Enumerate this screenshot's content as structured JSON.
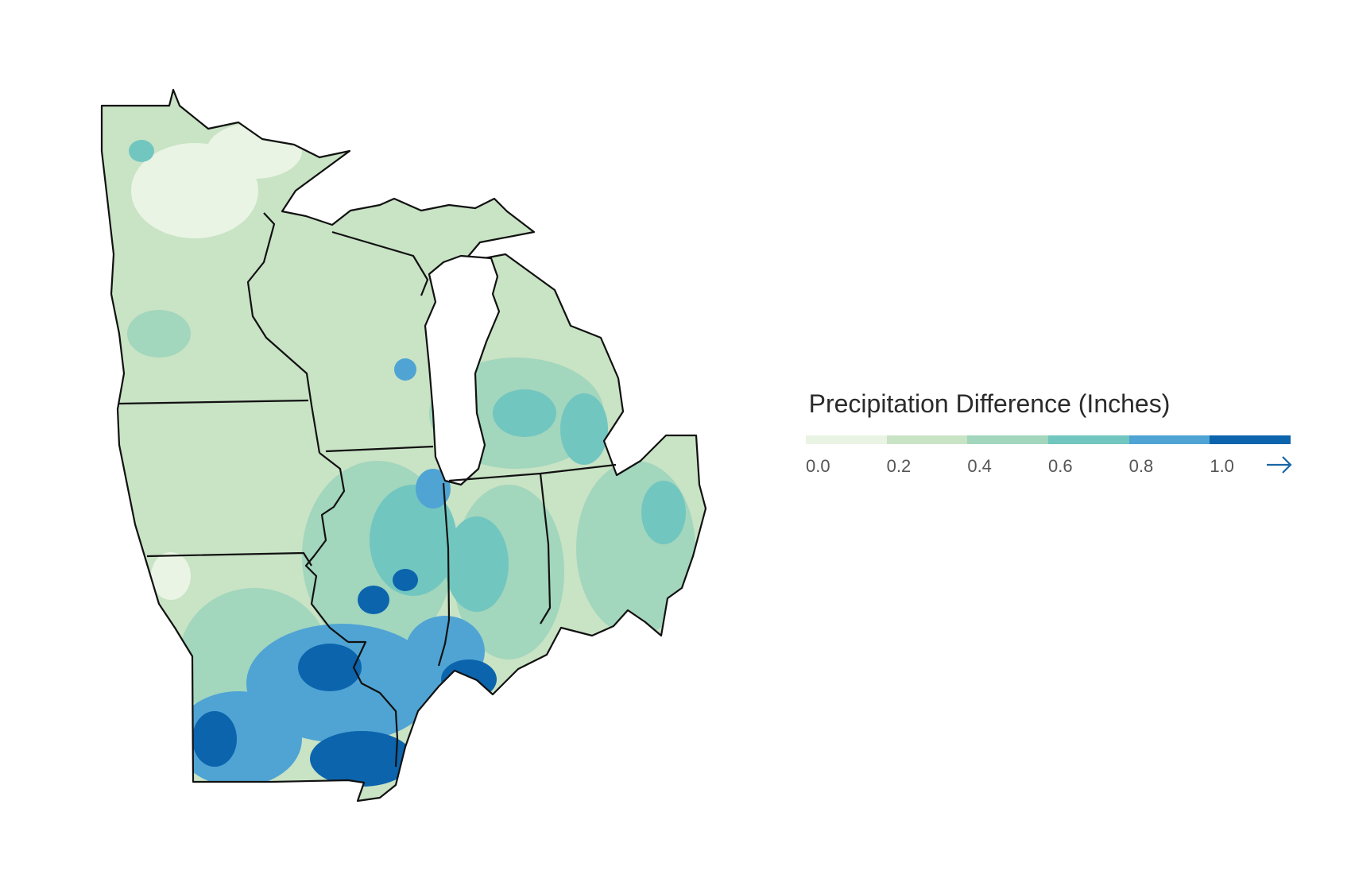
{
  "legend": {
    "title": "Precipitation Difference (Inches)",
    "bins": [
      {
        "label": "0.0",
        "color": "#e9f4e4"
      },
      {
        "label": "0.2",
        "color": "#c9e3c5"
      },
      {
        "label": "0.4",
        "color": "#a2d6bd"
      },
      {
        "label": "0.6",
        "color": "#72c6c0"
      },
      {
        "label": "0.8",
        "color": "#4fa4d4"
      },
      {
        "label": "1.0",
        "color": "#0c64ad"
      }
    ],
    "overflow_icon": "right-arrow-icon",
    "overflow_color": "#1766a8"
  },
  "map": {
    "region": "Midwest United States",
    "border_color": "#111111",
    "background_color": "#ffffff"
  }
}
